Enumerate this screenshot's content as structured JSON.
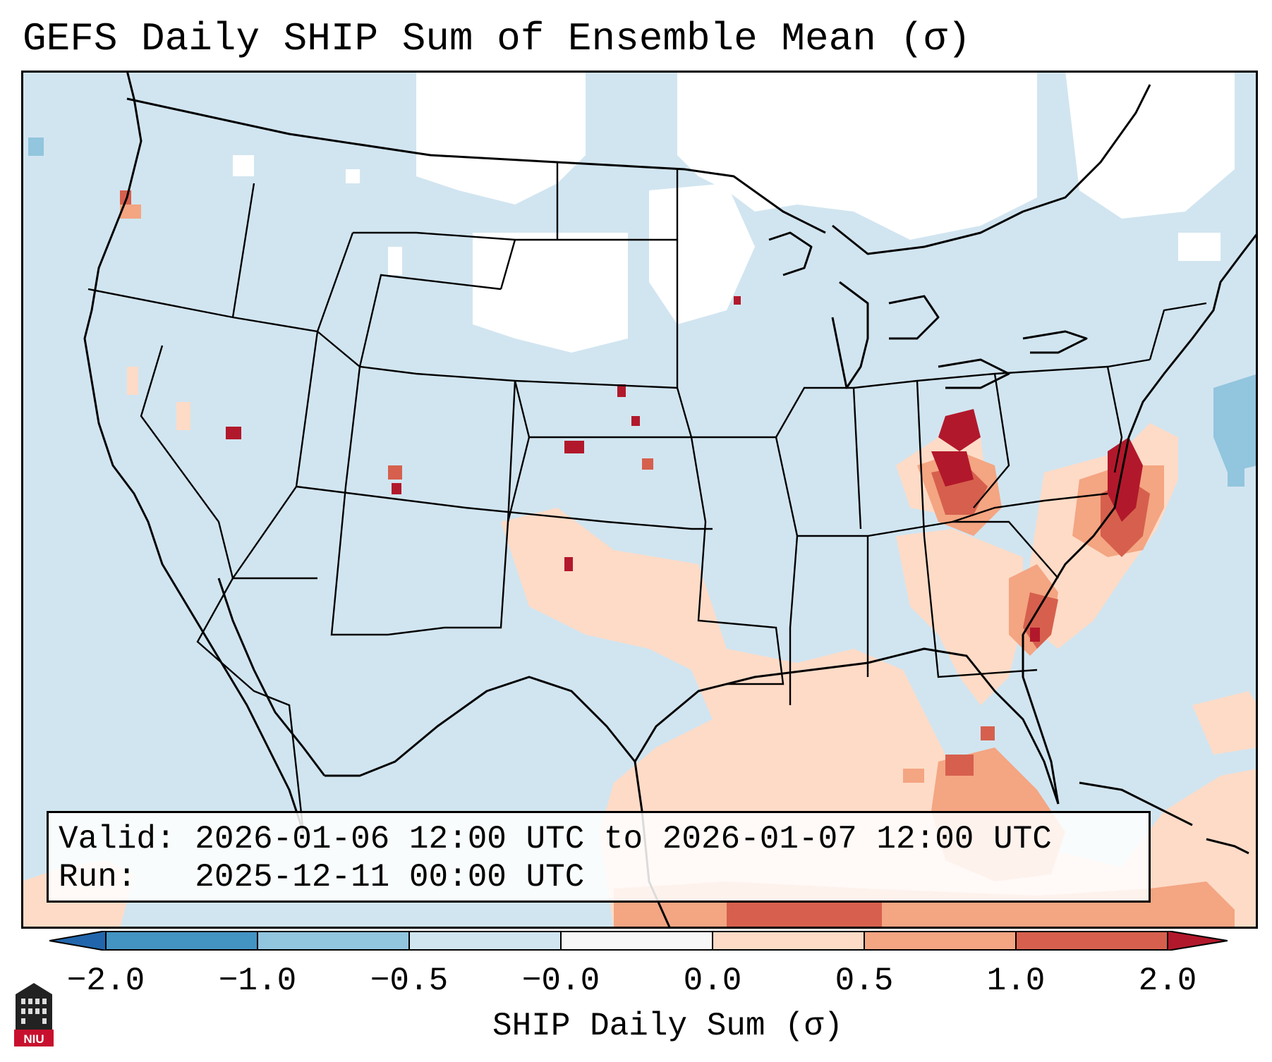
{
  "title": "GEFS Daily SHIP Sum of Ensemble Mean (σ)",
  "info": {
    "valid_line": "Valid: 2026-01-06 12:00 UTC to 2026-01-07 12:00 UTC",
    "run_line": "Run:   2025-12-11 00:00 UTC"
  },
  "colorbar": {
    "label": "SHIP Daily Sum (σ)",
    "ticks": [
      "−2.0",
      "−1.0",
      "−0.5",
      "−0.0",
      "0.0",
      "0.5",
      "1.0",
      "2.0"
    ],
    "colors": [
      "#3a7ebd",
      "#7fb2d8",
      "#c3dcec",
      "#f7f7f7",
      "#fbd1bd",
      "#f0967b",
      "#d35345",
      "#b1182b"
    ]
  },
  "logo": {
    "text": "NIU"
  }
}
